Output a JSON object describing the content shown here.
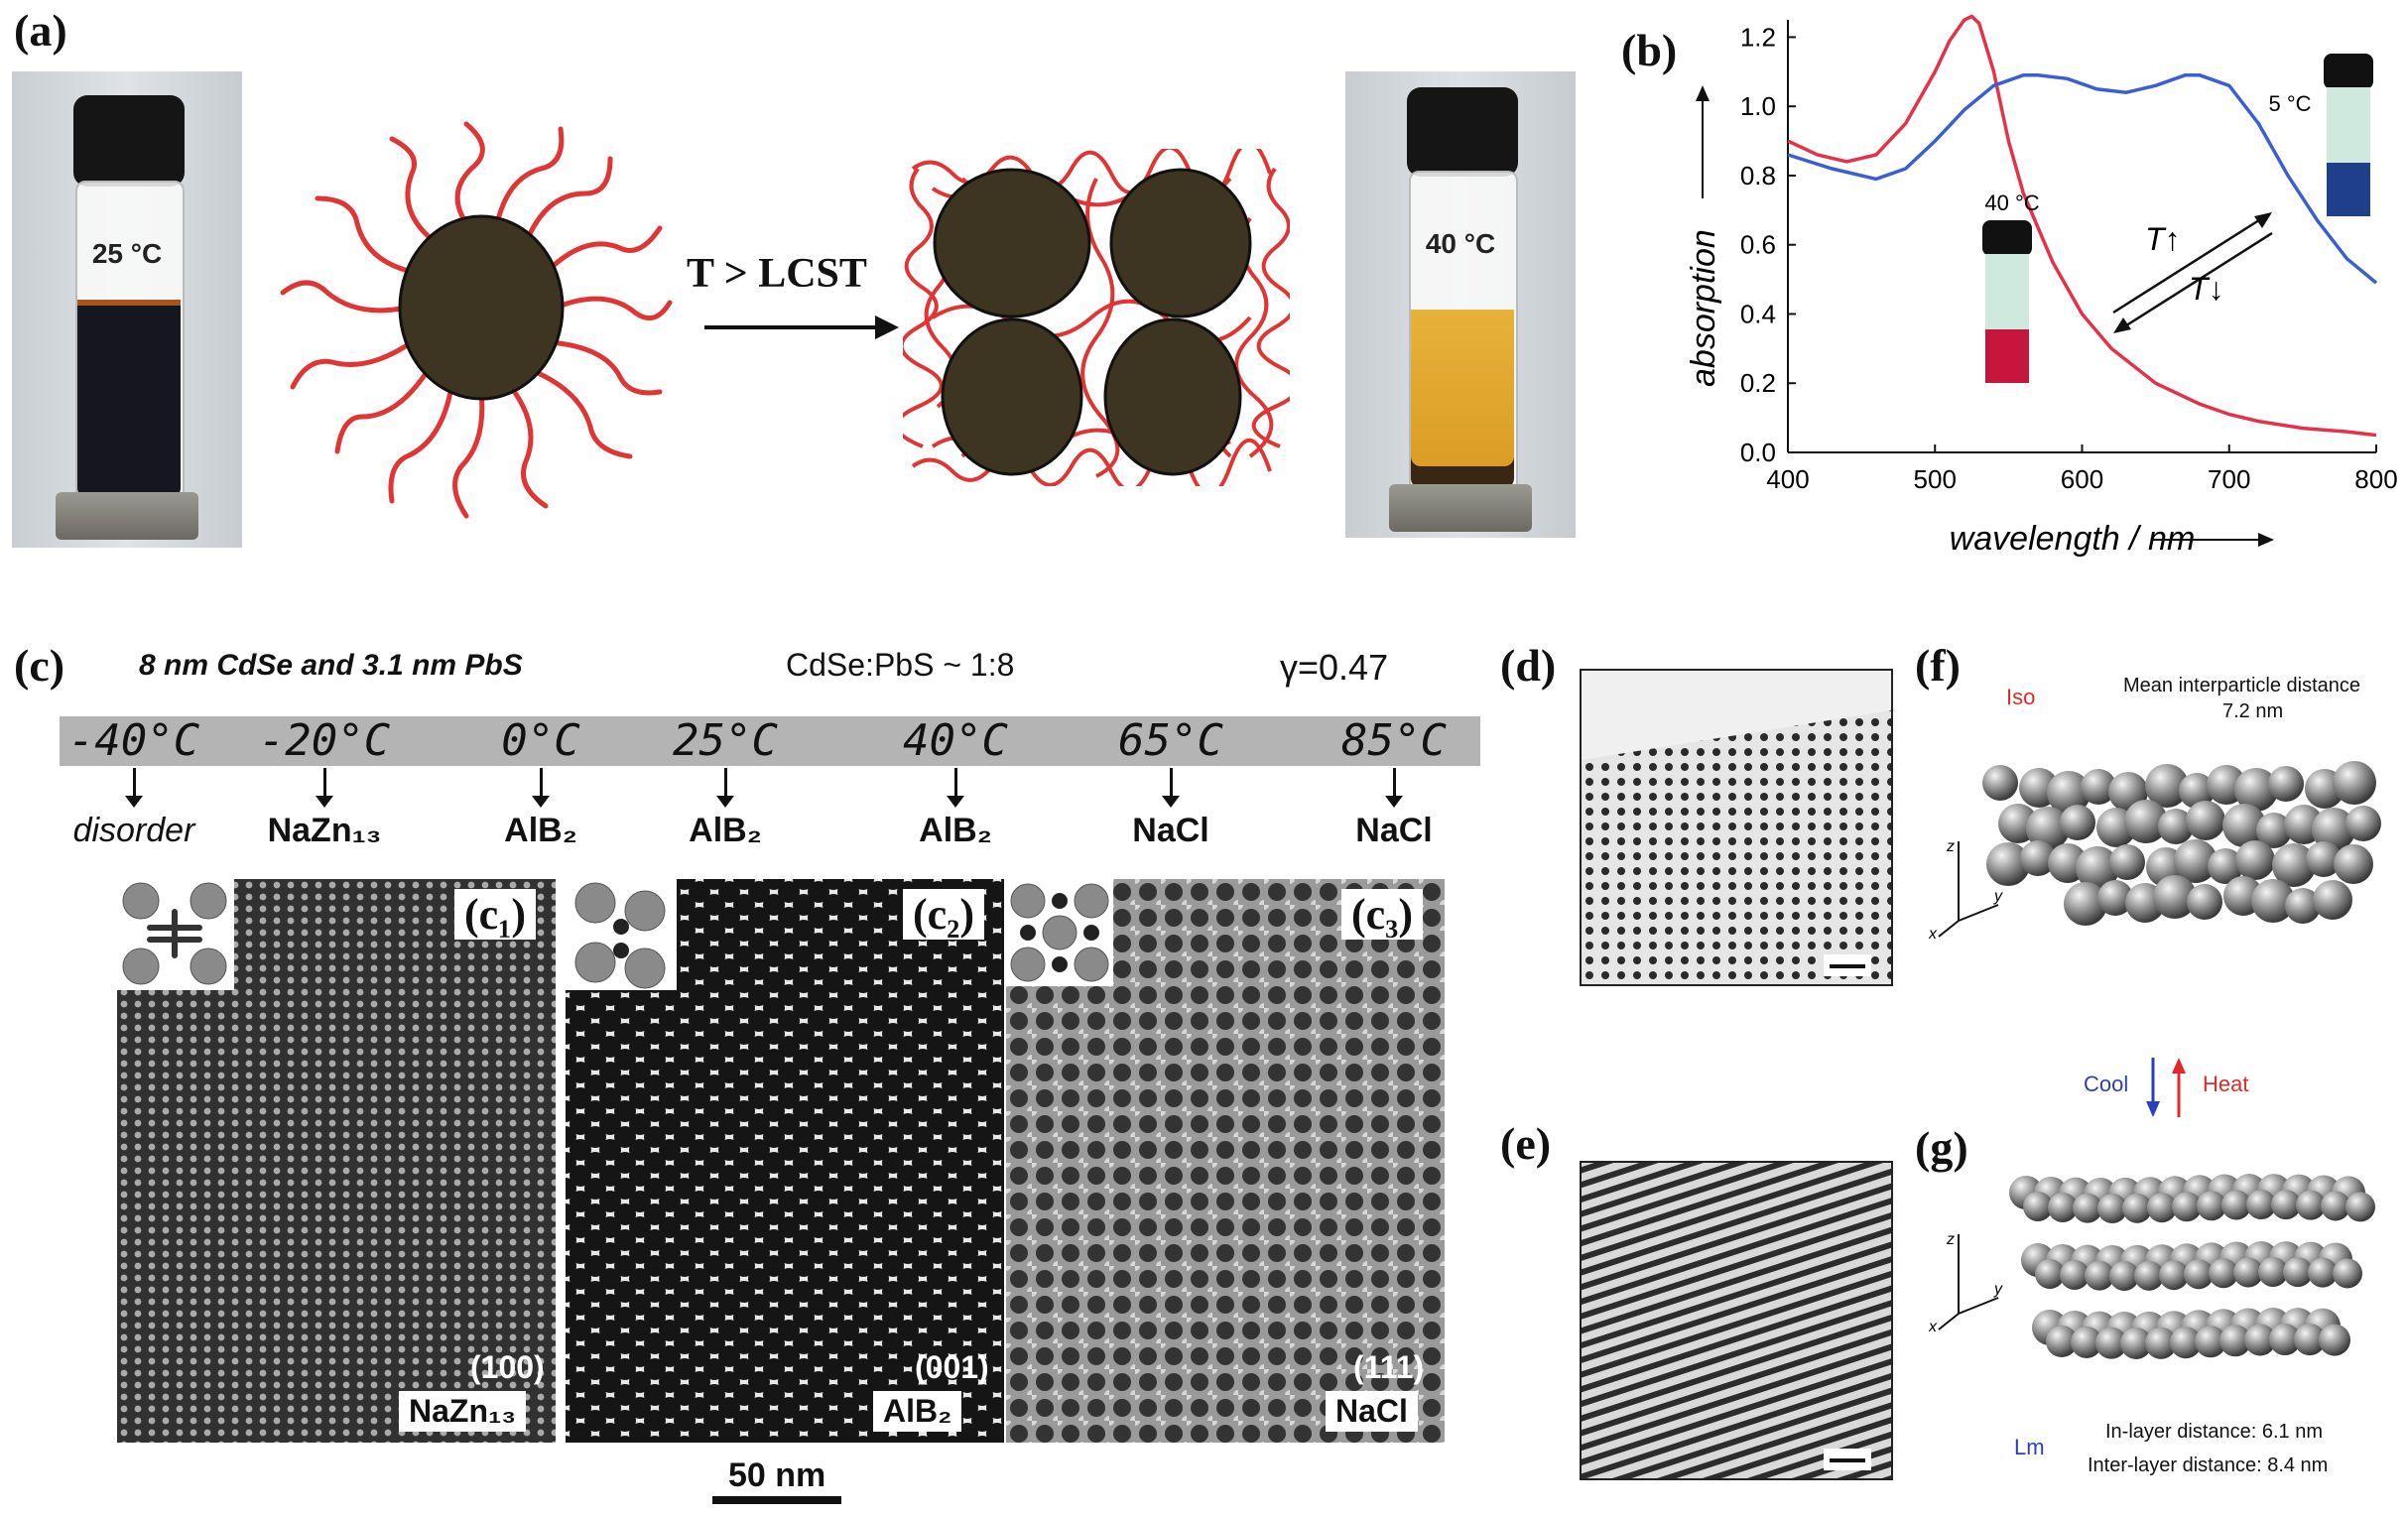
{
  "panel_a": {
    "label": "(a)",
    "vial_left_temp": "25 °C",
    "vial_right_temp": "40 °C",
    "arrow_text": "T > LCST",
    "colors": {
      "particle": "#3d3421",
      "polymer": "#e03535",
      "liquid_cold": "#1a1a24",
      "liquid_hot": "#e3a52a"
    }
  },
  "panel_b": {
    "label": "(b)",
    "vial_hot_label": "40 °C",
    "vial_cold_label": "5 °C",
    "t_up": "T↑",
    "t_down": "T↓"
  },
  "chart_data": {
    "type": "line",
    "xlabel": "wavelength / nm",
    "ylabel": "absorption",
    "xlim": [
      400,
      800
    ],
    "ylim": [
      0.0,
      1.25
    ],
    "xticks": [
      "400",
      "500",
      "600",
      "700",
      "800"
    ],
    "yticks": [
      "0.0",
      "0.2",
      "0.4",
      "0.6",
      "0.8",
      "1.0",
      "1.2"
    ],
    "series": [
      {
        "name": "40 °C",
        "color": "#e4324a",
        "x": [
          400,
          420,
          440,
          460,
          480,
          500,
          510,
          520,
          525,
          530,
          540,
          550,
          560,
          580,
          600,
          620,
          650,
          680,
          700,
          720,
          750,
          780,
          800
        ],
        "y": [
          0.9,
          0.86,
          0.84,
          0.86,
          0.95,
          1.1,
          1.19,
          1.25,
          1.26,
          1.24,
          1.1,
          0.9,
          0.75,
          0.55,
          0.4,
          0.3,
          0.2,
          0.14,
          0.11,
          0.09,
          0.07,
          0.06,
          0.05
        ]
      },
      {
        "name": "5 °C",
        "color": "#3b5fd0",
        "x": [
          400,
          430,
          460,
          480,
          500,
          520,
          540,
          560,
          570,
          590,
          610,
          630,
          650,
          670,
          680,
          700,
          720,
          740,
          760,
          780,
          800
        ],
        "y": [
          0.86,
          0.82,
          0.79,
          0.82,
          0.9,
          0.99,
          1.06,
          1.09,
          1.09,
          1.08,
          1.05,
          1.04,
          1.06,
          1.09,
          1.09,
          1.06,
          0.95,
          0.8,
          0.67,
          0.56,
          0.49
        ]
      }
    ]
  },
  "panel_c": {
    "label": "(c)",
    "header_left": "8 nm CdSe and 3.1 nm PbS",
    "header_mid": "CdSe:PbS ~ 1:8",
    "header_right": "γ=0.47",
    "temps": [
      {
        "t": "-40°C",
        "phase": "disorder"
      },
      {
        "t": "-20°C",
        "phase": "NaZn₁₃"
      },
      {
        "t": "0°C",
        "phase": "AlB₂"
      },
      {
        "t": "25°C",
        "phase": "AlB₂"
      },
      {
        "t": "40°C",
        "phase": "AlB₂"
      },
      {
        "t": "65°C",
        "phase": "NaCl"
      },
      {
        "t": "85°C",
        "phase": "NaCl"
      }
    ],
    "images": [
      {
        "sublabel": "(c₁)",
        "miller": "(100)",
        "tag": "NaZn₁₃"
      },
      {
        "sublabel": "(c₂)",
        "miller": "(001)",
        "tag": "AlB₂"
      },
      {
        "sublabel": "(c₃)",
        "miller": "(111)",
        "tag": "NaCl"
      }
    ],
    "scalebar": "50 nm"
  },
  "panel_d": {
    "label": "(d)"
  },
  "panel_e": {
    "label": "(e)"
  },
  "panel_f": {
    "label": "(f)",
    "iso": "Iso",
    "mean_distance_title": "Mean interparticle distance",
    "mean_distance_value": "7.2 nm"
  },
  "cool_heat": {
    "cool": "Cool",
    "heat": "Heat"
  },
  "panel_g": {
    "label": "(g)",
    "lm": "Lm",
    "in_layer": "In-layer distance: 6.1 nm",
    "inter_layer": "Inter-layer distance: 8.4 nm"
  }
}
